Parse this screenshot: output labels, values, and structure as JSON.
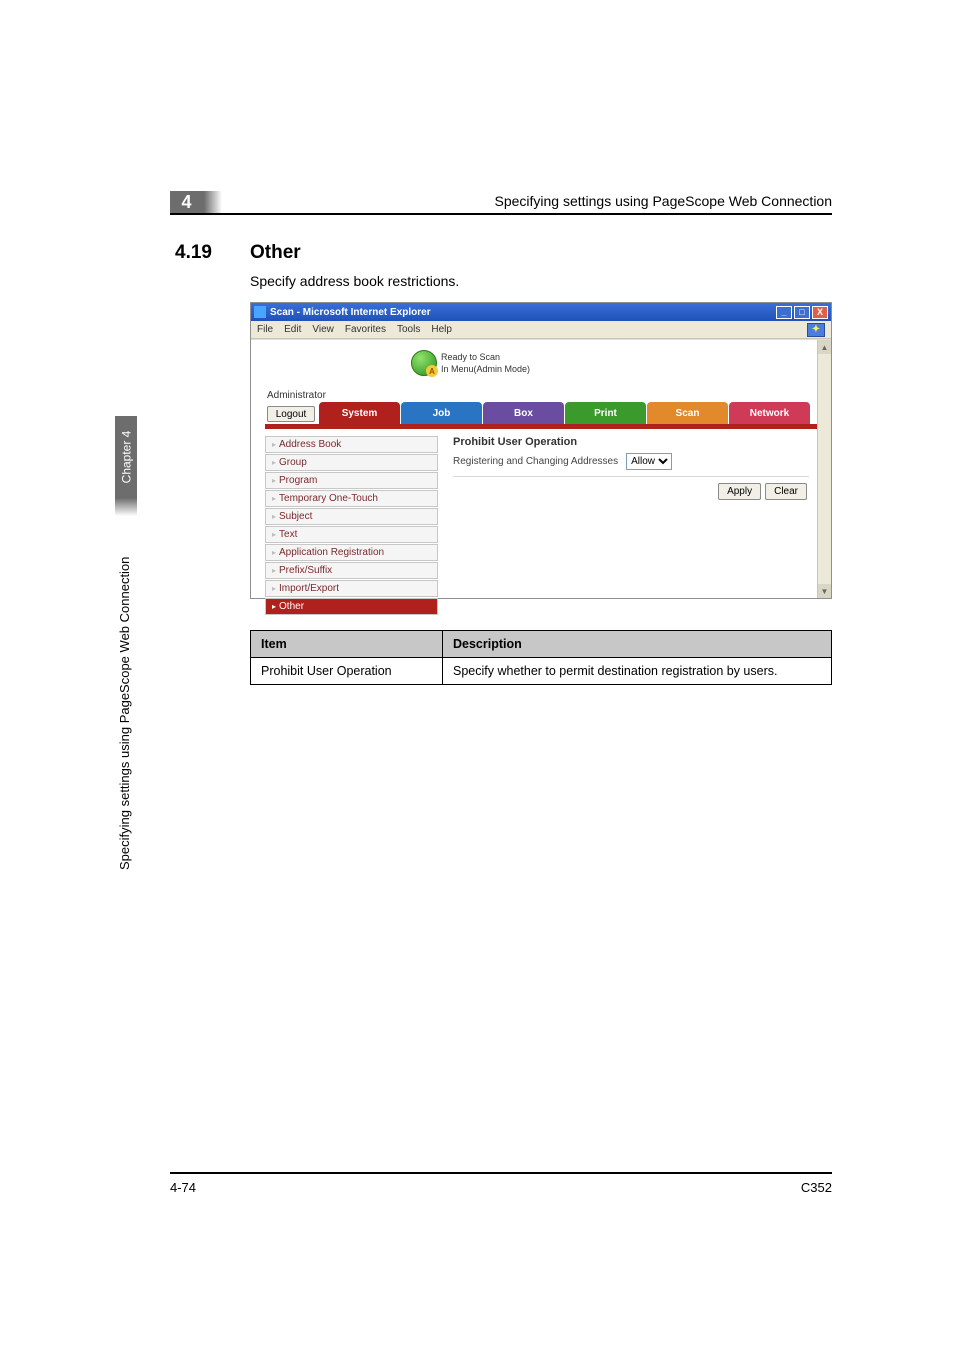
{
  "header": {
    "chapter_num": "4",
    "running_head": "Specifying settings using PageScope Web Connection"
  },
  "section": {
    "number": "4.19",
    "title": "Other",
    "body": "Specify address book restrictions."
  },
  "screenshot": {
    "window_title": "Scan - Microsoft Internet Explorer",
    "menus": [
      "File",
      "Edit",
      "View",
      "Favorites",
      "Tools",
      "Help"
    ],
    "status_line1": "Ready to Scan",
    "status_line2": "In Menu(Admin Mode)",
    "admin_label": "Administrator",
    "logout": "Logout",
    "tabs": {
      "system": "System",
      "job": "Job",
      "box": "Box",
      "print": "Print",
      "scan": "Scan",
      "network": "Network"
    },
    "sidemenu": [
      "Address Book",
      "Group",
      "Program",
      "Temporary One-Touch",
      "Subject",
      "Text",
      "Application Registration",
      "Prefix/Suffix",
      "Import/Export",
      "Other"
    ],
    "sidemenu_selected_index": 9,
    "panel": {
      "title": "Prohibit User Operation",
      "row_label": "Registering and Changing Addresses",
      "select_value": "Allow",
      "apply": "Apply",
      "clear": "Clear"
    },
    "colors": {
      "titlebar": "#2a59c0",
      "tab_active": "#b0201c"
    }
  },
  "def_table": {
    "head_item": "Item",
    "head_desc": "Description",
    "row1_item": "Prohibit User Operation",
    "row1_desc": "Specify whether to permit destination registration by users."
  },
  "side": {
    "tab": "Chapter 4",
    "vert": "Specifying settings using PageScope Web Connection"
  },
  "footer": {
    "left": "4-74",
    "right": "C352"
  }
}
